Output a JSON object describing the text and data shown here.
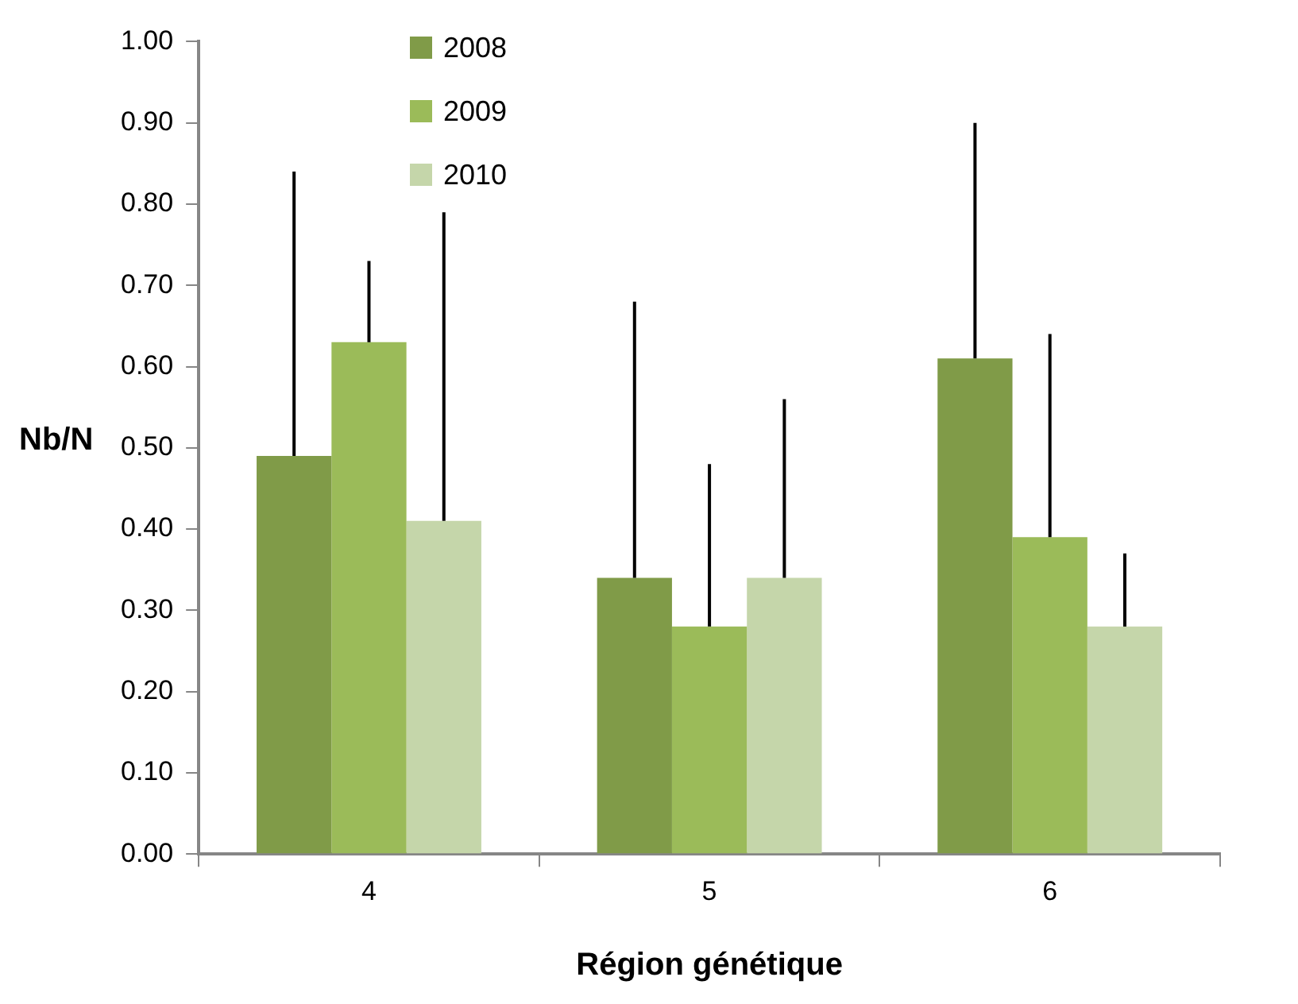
{
  "chart_data": {
    "type": "bar",
    "xlabel": "Région génétique",
    "ylabel": "Nb/N",
    "categories": [
      "4",
      "5",
      "6"
    ],
    "series": [
      {
        "name": "2008",
        "color": "#809b48",
        "values": [
          0.49,
          0.34,
          0.61
        ],
        "errors": [
          [
            0.49,
            0.84
          ],
          [
            0.34,
            0.68
          ],
          [
            0.61,
            0.9
          ]
        ]
      },
      {
        "name": "2009",
        "color": "#9bbb59",
        "values": [
          0.63,
          0.28,
          0.39
        ],
        "errors": [
          [
            0.63,
            0.73
          ],
          [
            0.28,
            0.48
          ],
          [
            0.39,
            0.64
          ]
        ]
      },
      {
        "name": "2010",
        "color": "#c5d6aa",
        "values": [
          0.41,
          0.34,
          0.28
        ],
        "errors": [
          [
            0.41,
            0.79
          ],
          [
            0.34,
            0.56
          ],
          [
            0.28,
            0.37
          ]
        ]
      }
    ],
    "ylim": [
      0,
      1
    ],
    "yticks": [
      {
        "value": 0,
        "label": "0.00"
      },
      {
        "value": 0.1,
        "label": "0.10"
      },
      {
        "value": 0.2,
        "label": "0.20"
      },
      {
        "value": 0.3,
        "label": "0.30"
      },
      {
        "value": 0.4,
        "label": "0.40"
      },
      {
        "value": 0.5,
        "label": "0.50"
      },
      {
        "value": 0.6,
        "label": "0.60"
      },
      {
        "value": 0.7,
        "label": "0.70"
      },
      {
        "value": 0.8,
        "label": "0.80"
      },
      {
        "value": 0.9,
        "label": "0.90"
      },
      {
        "value": 1,
        "label": "1.00"
      }
    ],
    "grid": false,
    "legend": "top left"
  }
}
